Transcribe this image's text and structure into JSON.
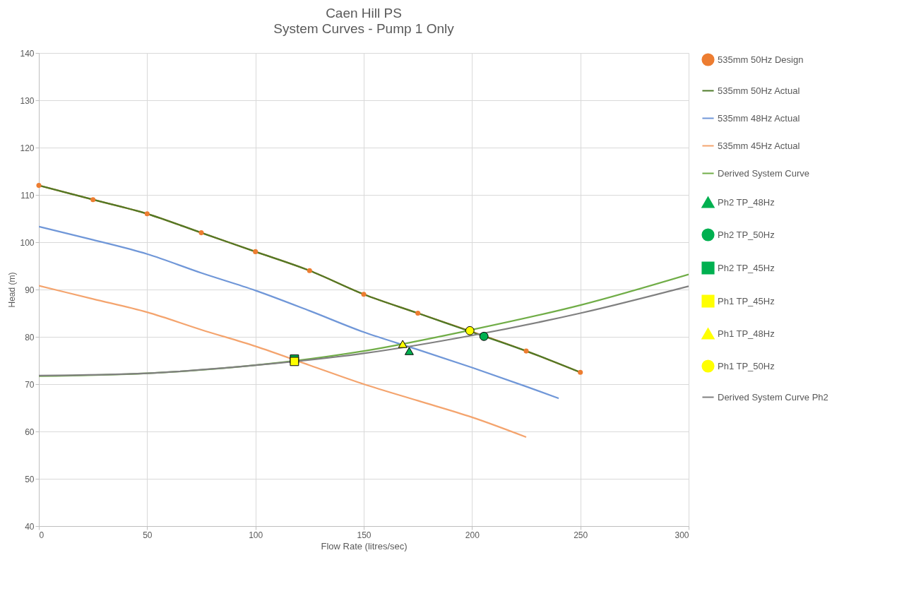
{
  "chart_data": {
    "type": "line",
    "title": "Caen Hill  PS",
    "subtitle": "System Curves - Pump 1 Only",
    "xlabel": "Flow Rate  (litres/sec)",
    "ylabel": "Head (m)",
    "xlim": [
      0,
      300
    ],
    "xticks": [
      0,
      50,
      100,
      150,
      200,
      250,
      300
    ],
    "ylim": [
      40,
      140
    ],
    "yticks": [
      40,
      50,
      60,
      70,
      80,
      90,
      100,
      110,
      120,
      130,
      140
    ],
    "grid": true,
    "legend": "right",
    "series": [
      {
        "name": "535mm 50Hz Design",
        "type": "line",
        "marker": "circle",
        "color": "#ed7d31",
        "x": [
          0,
          25,
          50,
          75,
          100,
          125,
          150,
          175,
          225,
          250
        ],
        "values": [
          112,
          109,
          106,
          102,
          98,
          94,
          89,
          85,
          77,
          72.5
        ]
      },
      {
        "name": "535mm 50Hz Actual",
        "type": "line",
        "color": "#4e7a28",
        "x": [
          0,
          25,
          50,
          75,
          100,
          125,
          150,
          175,
          200,
          225,
          250
        ],
        "values": [
          112,
          109,
          106,
          102,
          98,
          94,
          89,
          85,
          81,
          77,
          72.5
        ]
      },
      {
        "name": "535mm 48Hz Actual",
        "type": "line",
        "color": "#7097d8",
        "x": [
          0,
          25,
          50,
          75,
          100,
          125,
          150,
          175,
          200,
          225,
          240
        ],
        "values": [
          103.3,
          100.5,
          97.5,
          93.5,
          89.8,
          85.5,
          81,
          77.3,
          73.5,
          69.5,
          67
        ]
      },
      {
        "name": "535mm 45Hz Actual",
        "type": "line",
        "color": "#f4a46e",
        "x": [
          0,
          25,
          50,
          75,
          100,
          125,
          150,
          175,
          200,
          225
        ],
        "values": [
          90.8,
          88,
          85.2,
          81.5,
          78,
          74,
          70,
          66.5,
          63,
          58.8
        ]
      },
      {
        "name": "Derived System Curve",
        "type": "line",
        "color": "#70ad47",
        "x": [
          0,
          50,
          100,
          150,
          200,
          250,
          300
        ],
        "values": [
          71.7,
          72.3,
          74,
          77,
          81.5,
          86.7,
          93.2
        ]
      },
      {
        "name": "Ph2 TP_48Hz",
        "type": "scatter",
        "marker": "triangle",
        "color": "#00b050",
        "x": [
          171
        ],
        "values": [
          77
        ]
      },
      {
        "name": "Ph2 TP_50Hz",
        "type": "scatter",
        "marker": "circle",
        "color": "#00b050",
        "x": [
          205.5
        ],
        "values": [
          80.1
        ]
      },
      {
        "name": "Ph2 TP_45Hz",
        "type": "scatter",
        "marker": "square",
        "color": "#00b050",
        "x": [
          118
        ],
        "values": [
          75.3
        ]
      },
      {
        "name": "Ph1 TP_45Hz",
        "type": "scatter",
        "marker": "square",
        "color": "#ffff00",
        "x": [
          118
        ],
        "values": [
          74.8
        ]
      },
      {
        "name": "Ph1 TP_48Hz",
        "type": "scatter",
        "marker": "triangle",
        "color": "#ffff00",
        "x": [
          168
        ],
        "values": [
          78.5
        ]
      },
      {
        "name": "Ph1 TP_50Hz",
        "type": "scatter",
        "marker": "circle",
        "color": "#ffff00",
        "x": [
          199
        ],
        "values": [
          81.3
        ]
      },
      {
        "name": "Derived System Curve Ph2",
        "type": "line",
        "color": "#808080",
        "x": [
          0,
          50,
          100,
          150,
          200,
          250,
          300
        ],
        "values": [
          71.8,
          72.3,
          74,
          76.5,
          80.3,
          85,
          90.7
        ]
      }
    ]
  }
}
